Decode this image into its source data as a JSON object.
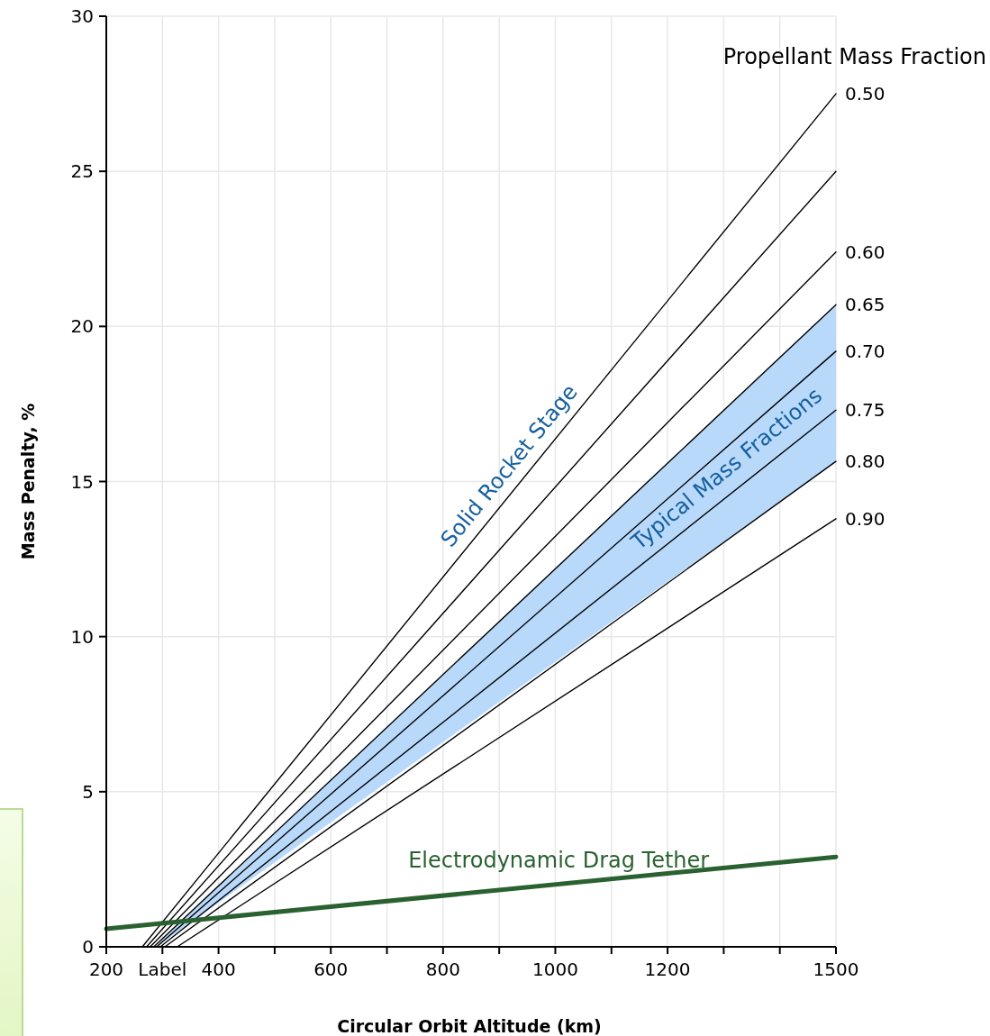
{
  "chart_data": {
    "type": "line",
    "xlabel": "Circular Orbit Altitude (km)",
    "ylabel": "Mass Penalty, %",
    "legend_title": "Propellant Mass Fraction",
    "xlim": [
      200,
      1500
    ],
    "ylim": [
      0,
      30
    ],
    "xticks": [
      200,
      {
        "value": 300,
        "label": "Label"
      },
      400,
      {
        "value": 500,
        "label": null
      },
      600,
      {
        "value": 700,
        "label": null
      },
      800,
      {
        "value": 900,
        "label": null
      },
      1000,
      {
        "value": 1100,
        "label": null
      },
      1200,
      {
        "value": 1300,
        "label": null
      },
      {
        "value": 1400,
        "label": null
      },
      1500
    ],
    "yticks": [
      0,
      5,
      10,
      15,
      20,
      25,
      30
    ],
    "grid": true,
    "line_style": "solid",
    "marker": "none",
    "series": [
      {
        "name": "0.50",
        "color": "#000000",
        "x": [
          264.2,
          1500
        ],
        "values": [
          0,
          27.5
        ]
      },
      {
        "color": "#000000",
        "x": [
          271.7,
          1500
        ],
        "values": [
          0,
          25.0
        ]
      },
      {
        "name": "0.60",
        "color": "#000000",
        "x": [
          278.2,
          1500
        ],
        "values": [
          0,
          22.4
        ]
      },
      {
        "name": "0.65",
        "color": "#000000",
        "x": [
          284.6,
          1500
        ],
        "values": [
          0,
          20.7
        ]
      },
      {
        "name": "0.70",
        "color": "#000000",
        "x": [
          289.9,
          1500
        ],
        "values": [
          0,
          19.2
        ],
        "lower": [
          0,
          15.65
        ],
        "upper": [
          0.09,
          20.7
        ]
      },
      {
        "name": "0.75",
        "color": "#000000",
        "x": [
          296.3,
          1500
        ],
        "values": [
          0,
          17.3
        ]
      },
      {
        "name": "0.80",
        "color": "#000000",
        "x": [
          304.3,
          1500
        ],
        "values": [
          0,
          15.65
        ]
      },
      {
        "name": "0.90",
        "color": "#000000",
        "x": [
          326.3,
          1500
        ],
        "values": [
          0,
          13.8
        ]
      },
      {
        "name": "Electrodynamic Drag Tether",
        "color": "#2a6130",
        "x": [
          200,
          1500
        ],
        "values": [
          0.58,
          2.9
        ]
      }
    ],
    "annotations": [
      "Solid Rocket Stage",
      "Typical Mass Fractions"
    ]
  }
}
